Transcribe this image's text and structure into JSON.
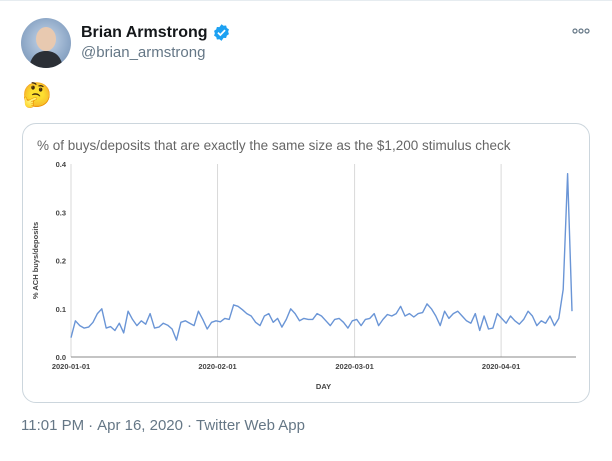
{
  "author": {
    "name": "Brian Armstrong",
    "handle": "@brian_armstrong"
  },
  "tweet": {
    "emoji": "🤔"
  },
  "meta": {
    "time": "11:01 PM",
    "date": "Apr 16, 2020",
    "source": "Twitter Web App",
    "separator": "·"
  },
  "icons": {
    "verified": "verified-badge-icon",
    "more": "more-options-icon"
  },
  "colors": {
    "line": "#6a95d6",
    "verified": "#1da1f2",
    "grid": "#d9d9d9"
  },
  "chart_data": {
    "type": "line",
    "title": "% of buys/deposits that are exactly the same size as the $1,200 stimulus check",
    "xlabel": "DAY",
    "ylabel": "% ACH buys/deposits",
    "ylim": [
      0,
      0.4
    ],
    "yticks": [
      "0.0",
      "0.1",
      "0.2",
      "0.3",
      "0.4"
    ],
    "xticks": [
      "2020-01-01",
      "2020-02-01",
      "2020-03-01",
      "2020-04-01"
    ],
    "x_start": "2020-01-01",
    "x_end": "2020-04-16",
    "series": [
      {
        "values": [
          0.04,
          0.075,
          0.065,
          0.06,
          0.062,
          0.072,
          0.09,
          0.1,
          0.06,
          0.063,
          0.055,
          0.07,
          0.05,
          0.095,
          0.078,
          0.065,
          0.075,
          0.068,
          0.09,
          0.06,
          0.062,
          0.07,
          0.066,
          0.058,
          0.035,
          0.072,
          0.075,
          0.07,
          0.065,
          0.095,
          0.078,
          0.058,
          0.072,
          0.075,
          0.073,
          0.08,
          0.078,
          0.108,
          0.105,
          0.098,
          0.09,
          0.085,
          0.072,
          0.065,
          0.085,
          0.09,
          0.072,
          0.08,
          0.062,
          0.078,
          0.1,
          0.09,
          0.075,
          0.08,
          0.078,
          0.078,
          0.09,
          0.085,
          0.075,
          0.065,
          0.078,
          0.08,
          0.072,
          0.06,
          0.075,
          0.078,
          0.065,
          0.078,
          0.08,
          0.09,
          0.065,
          0.078,
          0.088,
          0.085,
          0.09,
          0.105,
          0.085,
          0.09,
          0.083,
          0.09,
          0.092,
          0.11,
          0.1,
          0.085,
          0.065,
          0.095,
          0.08,
          0.09,
          0.095,
          0.085,
          0.075,
          0.07,
          0.09,
          0.055,
          0.085,
          0.058,
          0.06,
          0.09,
          0.08,
          0.07,
          0.085,
          0.075,
          0.068,
          0.078,
          0.095,
          0.085,
          0.065,
          0.075,
          0.07,
          0.085,
          0.065,
          0.08,
          0.14,
          0.38,
          0.095
        ]
      }
    ],
    "grid": "vertical"
  }
}
